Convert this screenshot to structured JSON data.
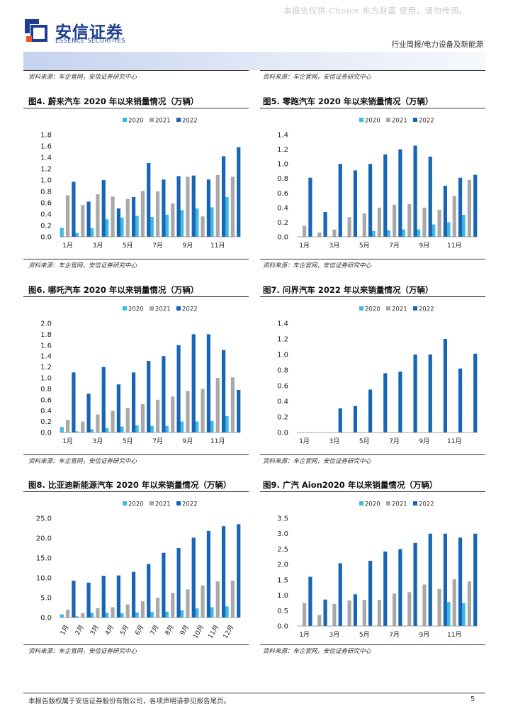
{
  "watermark": "本报告仅供 Choice 东方财富 使用，请勿传阅。",
  "header": {
    "brand_cn": "安信证券",
    "brand_en": "ESSENCE SECURITIES",
    "section": "行业周报/电力设备及新能源"
  },
  "colors": {
    "y2020": "#3fb9e3",
    "y2021": "#a9a9a9",
    "y2022": "#1666b5",
    "brand": "#1d3f8e",
    "brand_accent": "#e8562a"
  },
  "sources": {
    "top_left": "资料来源：车企官网，安信证券研究中心",
    "top_right": "资料来源：车企官网，安信证券研究中心",
    "row1_left": "资料来源：车企官网，安信证券研究中心",
    "row1_right": "资料来源：车企官网，安信证券研究中心",
    "row2_left": "资料来源：车企官网，安信证券研究中心",
    "row2_right": "资料来源：车企官网，安信证券研究中心",
    "row3_left": "资料来源：车企官网，安信证券研究中心",
    "row3_right": "资料来源：车企官网，安信证券研究中心"
  },
  "chart_data": [
    {
      "id": "fig4",
      "type": "bar",
      "title": "图4. 蔚来汽车 2020 年以来销量情况（万辆）",
      "legend": [
        "2020",
        "2021",
        "2022"
      ],
      "legend_position": "top",
      "ylim": [
        0,
        1.8
      ],
      "yticks": [
        "0.0",
        "0.2",
        "0.4",
        "0.6",
        "0.8",
        "1.0",
        "1.2",
        "1.4",
        "1.6",
        "1.8"
      ],
      "categories": [
        "1月",
        "2月",
        "3月",
        "4月",
        "5月",
        "6月",
        "7月",
        "8月",
        "9月",
        "10月",
        "11月",
        "12月"
      ],
      "xtick_labels": [
        "1月",
        "",
        "3月",
        "",
        "5月",
        "",
        "7月",
        "",
        "9月",
        "",
        "11月",
        ""
      ],
      "series": [
        {
          "name": "2020",
          "values": [
            0.16,
            0.07,
            0.15,
            0.31,
            0.34,
            0.37,
            0.35,
            0.39,
            0.47,
            0.5,
            0.52,
            0.7
          ]
        },
        {
          "name": "2021",
          "values": [
            0.73,
            0.56,
            0.75,
            0.71,
            0.67,
            0.81,
            0.8,
            0.59,
            1.06,
            0.36,
            1.09,
            1.06
          ]
        },
        {
          "name": "2022",
          "values": [
            0.97,
            0.62,
            1.0,
            0.5,
            0.7,
            1.3,
            1.01,
            1.07,
            1.08,
            1.01,
            1.42,
            1.58
          ]
        }
      ]
    },
    {
      "id": "fig5",
      "type": "bar",
      "title": "图5. 零跑汽车 2020 年以来销量情况（万辆）",
      "legend": [
        "2020",
        "2021",
        "2022"
      ],
      "legend_position": "top",
      "ylim": [
        0,
        1.4
      ],
      "yticks": [
        "0.0",
        "0.2",
        "0.4",
        "0.6",
        "0.8",
        "1.0",
        "1.2",
        "1.4"
      ],
      "categories": [
        "1月",
        "2月",
        "3月",
        "4月",
        "5月",
        "6月",
        "7月",
        "8月",
        "9月",
        "10月",
        "11月",
        "12月"
      ],
      "xtick_labels": [
        "1月",
        "",
        "3月",
        "",
        "5月",
        "",
        "7月",
        "",
        "9月",
        "",
        "11月",
        ""
      ],
      "series": [
        {
          "name": "2020",
          "values": [
            0,
            0,
            0,
            0,
            0,
            0.08,
            0.09,
            0.1,
            0.1,
            0.17,
            0.2,
            0.3
          ]
        },
        {
          "name": "2021",
          "values": [
            0.15,
            0.06,
            0.1,
            0.27,
            0.32,
            0.4,
            0.44,
            0.45,
            0.4,
            0.37,
            0.56,
            0.78
          ]
        },
        {
          "name": "2022",
          "values": [
            0.81,
            0.34,
            1.0,
            0.91,
            1.0,
            1.13,
            1.2,
            1.25,
            1.1,
            0.7,
            0.81,
            0.85
          ]
        }
      ]
    },
    {
      "id": "fig6",
      "type": "bar",
      "title": "图6. 哪吒汽车 2020 年以来销量情况（万辆）",
      "legend": [
        "2020",
        "2021",
        "2022"
      ],
      "legend_position": "top",
      "ylim": [
        0,
        2.0
      ],
      "yticks": [
        "0.0",
        "0.2",
        "0.4",
        "0.6",
        "0.8",
        "1.0",
        "1.2",
        "1.4",
        "1.6",
        "1.8",
        "2.0"
      ],
      "categories": [
        "1月",
        "2月",
        "3月",
        "4月",
        "5月",
        "6月",
        "7月",
        "8月",
        "9月",
        "10月",
        "11月",
        "12月"
      ],
      "xtick_labels": [
        "1月",
        "",
        "3月",
        "",
        "5月",
        "",
        "7月",
        "",
        "9月",
        "",
        "11月",
        ""
      ],
      "series": [
        {
          "name": "2020",
          "values": [
            0.1,
            0.02,
            0.06,
            0.08,
            0.11,
            0.13,
            0.12,
            0.12,
            0.2,
            0.2,
            0.21,
            0.3
          ]
        },
        {
          "name": "2021",
          "values": [
            0.23,
            0.2,
            0.33,
            0.4,
            0.45,
            0.52,
            0.6,
            0.66,
            0.76,
            0.8,
            1.0,
            1.01
          ]
        },
        {
          "name": "2022",
          "values": [
            1.1,
            0.71,
            1.2,
            0.88,
            1.1,
            1.31,
            1.4,
            1.6,
            1.8,
            1.8,
            1.51,
            0.78
          ]
        }
      ]
    },
    {
      "id": "fig7",
      "type": "bar",
      "title": "图7. 问界汽车 2022 年以来销量情况（万辆）",
      "legend": [
        "2020",
        "2021",
        "2022"
      ],
      "legend_position": "top",
      "ylim": [
        0,
        1.4
      ],
      "yticks": [
        "0.0",
        "0.2",
        "0.4",
        "0.6",
        "0.8",
        "1.0",
        "1.2",
        "1.4"
      ],
      "categories": [
        "1月",
        "2月",
        "3月",
        "4月",
        "5月",
        "6月",
        "7月",
        "8月",
        "9月",
        "10月",
        "11月",
        "12月"
      ],
      "xtick_labels": [
        "1月",
        "",
        "3月",
        "",
        "5月",
        "",
        "7月",
        "",
        "9月",
        "",
        "11月",
        ""
      ],
      "series": [
        {
          "name": "2020",
          "values": [
            0,
            0,
            0,
            0,
            0,
            0,
            0,
            0,
            0,
            0,
            0,
            0
          ]
        },
        {
          "name": "2021",
          "values": [
            0,
            0,
            0,
            0,
            0,
            0,
            0,
            0,
            0,
            0,
            0,
            0
          ]
        },
        {
          "name": "2022",
          "values": [
            0,
            0,
            0.31,
            0.34,
            0.55,
            0.76,
            0.78,
            1.0,
            1.0,
            1.2,
            0.82,
            1.01
          ]
        }
      ]
    },
    {
      "id": "fig8",
      "type": "bar",
      "title": "图8. 比亚迪新能源汽车 2020 年以来销量情况（万辆）",
      "legend": [
        "2020",
        "2021",
        "2022"
      ],
      "legend_position": "top",
      "ylim": [
        0,
        25
      ],
      "yticks": [
        "0.0",
        "5.0",
        "10.0",
        "15.0",
        "20.0",
        "25.0"
      ],
      "categories": [
        "1月",
        "2月",
        "3月",
        "4月",
        "5月",
        "6月",
        "7月",
        "8月",
        "9月",
        "10月",
        "11月",
        "12月"
      ],
      "xtick_labels": [
        "1月",
        "2月",
        "3月",
        "4月",
        "5月",
        "6月",
        "7月",
        "8月",
        "9月",
        "10月",
        "11月",
        "12月"
      ],
      "rotate_xticks": true,
      "series": [
        {
          "name": "2020",
          "values": [
            0.8,
            0.3,
            1.2,
            1.2,
            1.1,
            1.3,
            1.4,
            1.5,
            1.8,
            2.3,
            2.6,
            2.8
          ]
        },
        {
          "name": "2021",
          "values": [
            2.0,
            1.1,
            2.4,
            2.6,
            3.3,
            4.1,
            5.0,
            6.2,
            7.1,
            8.1,
            9.1,
            9.3
          ]
        },
        {
          "name": "2022",
          "values": [
            9.3,
            8.8,
            10.5,
            10.6,
            11.5,
            13.5,
            16.3,
            17.5,
            20.1,
            21.8,
            23.0,
            23.5
          ]
        }
      ]
    },
    {
      "id": "fig9",
      "type": "bar",
      "title": "图9. 广汽 Aion2020 年以来销量情况（万辆）",
      "legend": [
        "2020",
        "2021",
        "2022"
      ],
      "legend_position": "top",
      "ylim": [
        0,
        3.5
      ],
      "yticks": [
        "0.0",
        "0.5",
        "1.0",
        "1.5",
        "2.0",
        "2.5",
        "3.0",
        "3.5"
      ],
      "categories": [
        "1月",
        "2月",
        "3月",
        "4月",
        "5月",
        "6月",
        "7月",
        "8月",
        "9月",
        "10月",
        "11月",
        "12月"
      ],
      "xtick_labels": [
        "1月",
        "",
        "3月",
        "",
        "5月",
        "",
        "7月",
        "",
        "9月",
        "",
        "11月",
        ""
      ],
      "series": [
        {
          "name": "2020",
          "values": [
            0,
            0,
            0,
            0,
            0,
            0,
            0,
            0,
            0,
            0,
            0.78,
            0.75
          ]
        },
        {
          "name": "2021",
          "values": [
            0.75,
            0.36,
            0.72,
            0.83,
            0.85,
            0.85,
            1.06,
            1.1,
            1.35,
            1.2,
            1.52,
            1.45
          ]
        },
        {
          "name": "2022",
          "values": [
            1.6,
            0.86,
            2.04,
            1.03,
            2.12,
            2.42,
            2.5,
            2.7,
            3.0,
            3.0,
            2.87,
            3.0
          ]
        }
      ]
    }
  ],
  "footer": {
    "disclaimer": "本报告版权属于安信证券股份有限公司，各项声明请参见报告尾页。",
    "page_number": "5"
  }
}
